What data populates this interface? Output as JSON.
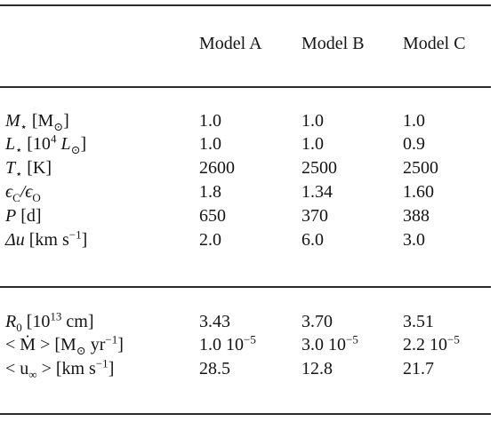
{
  "table": {
    "columns": [
      "Model A",
      "Model B",
      "Model C"
    ],
    "section1": {
      "rows": [
        {
          "name": "M",
          "sub": "⋆",
          "unit": "[M",
          "unit_sub": "⊙",
          "unit_close": "]",
          "values": [
            "1.0",
            "1.0",
            "1.0"
          ]
        },
        {
          "name": "L",
          "sub": "⋆",
          "unit": "[10",
          "unit_sup": "4",
          "unit_mid": " L",
          "unit_sub": "⊙",
          "unit_close": "]",
          "values": [
            "1.0",
            "1.0",
            "0.9"
          ]
        },
        {
          "name": "T",
          "sub": "⋆",
          "unit": "[K]",
          "values": [
            "2600",
            "2500",
            "2500"
          ]
        },
        {
          "name": "ϵ",
          "sub": "C",
          "mid": "/ϵ",
          "sub2": "O",
          "values": [
            "1.8",
            "1.34",
            "1.60"
          ]
        },
        {
          "name": "P",
          "unit": "[d]",
          "values": [
            "650",
            "370",
            "388"
          ]
        },
        {
          "name": "Δu",
          "unit": "[km s",
          "unit_sup": "−1",
          "unit_close": "]",
          "values": [
            "2.0",
            "6.0",
            "3.0"
          ]
        }
      ]
    },
    "section2": {
      "rows": [
        {
          "label_a": "R",
          "label_sub": "0",
          "label_b": " [10",
          "label_sup": "13",
          "label_c": " cm]",
          "values": [
            "3.43",
            "3.70",
            "3.51"
          ]
        },
        {
          "label_a": "< Ṁ > [M",
          "label_sub": "⊙",
          "label_b": " yr",
          "label_sup": "−1",
          "label_c": "]",
          "values": [
            {
              "mant": "1.0 10",
              "exp": "−5"
            },
            {
              "mant": "3.0 10",
              "exp": "−5"
            },
            {
              "mant": "2.2 10",
              "exp": "−5"
            }
          ]
        },
        {
          "label_a": "< u",
          "label_sub": "∞",
          "label_b": " > [km s",
          "label_sup": "−1",
          "label_c": "]",
          "values": [
            "28.5",
            "12.8",
            "21.7"
          ]
        }
      ]
    }
  }
}
